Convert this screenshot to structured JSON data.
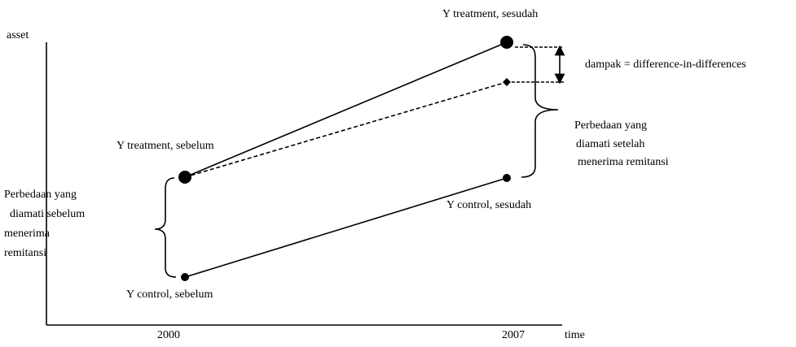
{
  "axis": {
    "y_label": "asset",
    "x_label": "time",
    "x_ticks": [
      "2000",
      "2007"
    ]
  },
  "points": [
    {
      "label": "Y treatment, sesudah"
    },
    {
      "label": "Y treatment, sebelum"
    },
    {
      "label": "Y control, sesudah"
    },
    {
      "label": "Y control, sebelum"
    }
  ],
  "annotations": {
    "impact": "dampak = difference-in-differences",
    "after_difference": [
      "Perbedaan yang",
      "diamati setelah",
      "menerima remitansi"
    ],
    "before_difference": [
      "Perbedaan yang",
      "diamati sebelum",
      "menerima",
      "remitansi"
    ]
  }
}
